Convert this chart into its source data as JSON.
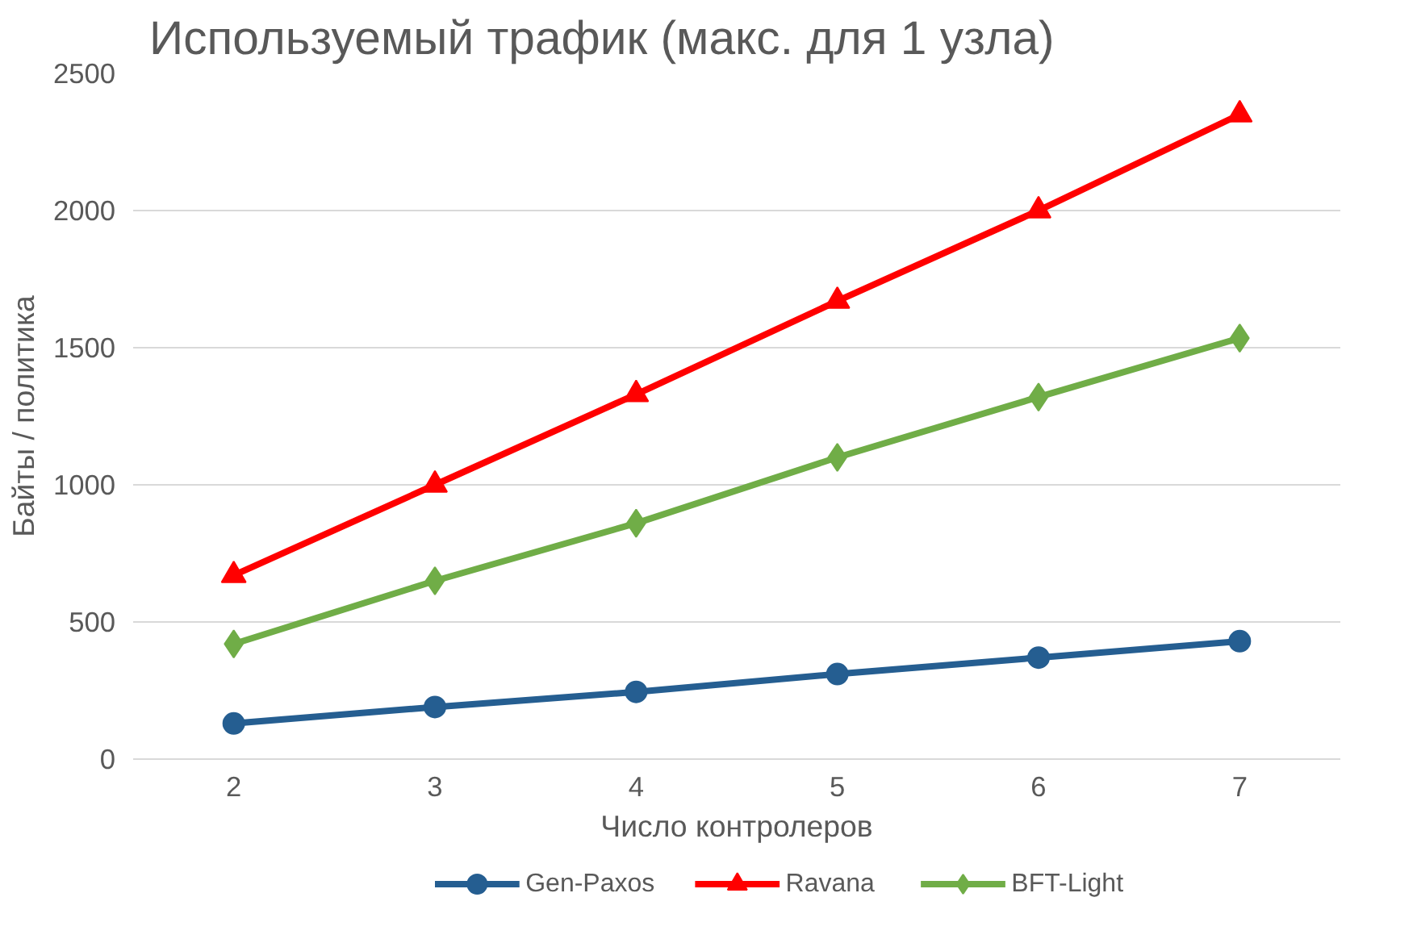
{
  "chart_data": {
    "type": "line",
    "title": "Используемый трафик (макс. для 1 узла)",
    "xlabel": "Число контролеров",
    "ylabel": "Байты / политика",
    "categories": [
      "2",
      "3",
      "4",
      "5",
      "6",
      "7"
    ],
    "series": [
      {
        "name": "Gen-Paxos",
        "color": "#255e91",
        "marker": "circle",
        "values": [
          130,
          190,
          245,
          310,
          370,
          430
        ]
      },
      {
        "name": "Ravana",
        "color": "#ff0000",
        "marker": "triangle",
        "values": [
          670,
          1000,
          1330,
          1670,
          2000,
          2350
        ]
      },
      {
        "name": "BFT-Light",
        "color": "#70ad47",
        "marker": "diamond",
        "values": [
          420,
          650,
          860,
          1100,
          1320,
          1535
        ]
      }
    ],
    "ylim": [
      0,
      2500
    ],
    "yticks": [
      0,
      500,
      1000,
      1500,
      2000,
      2500
    ],
    "grid": "y",
    "legend": "bottom",
    "line_style": "solid"
  }
}
